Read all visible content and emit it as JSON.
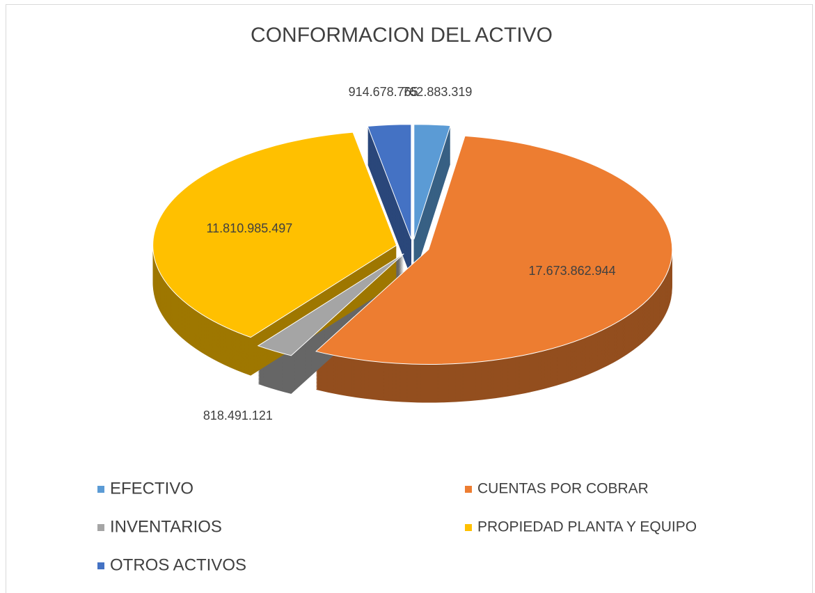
{
  "chart_data": {
    "type": "pie3d",
    "title": "CONFORMACION DEL ACTIVO",
    "categories": [
      "EFECTIVO",
      "CUENTAS POR COBRAR",
      "INVENTARIOS",
      "PROPIEDAD PLANTA Y EQUIPO",
      "OTROS ACTIVOS"
    ],
    "values": [
      762883319,
      17673862944,
      818491121,
      11810985497,
      914678765
    ],
    "value_labels": [
      "762.883.319",
      "17.673.862.944",
      "818.491.121",
      "11.810.985.497",
      "914.678.765"
    ],
    "colors": [
      "#5b9bd5",
      "#ed7d31",
      "#a5a5a5",
      "#ffc000",
      "#4472c4"
    ],
    "legend": "bottom"
  }
}
